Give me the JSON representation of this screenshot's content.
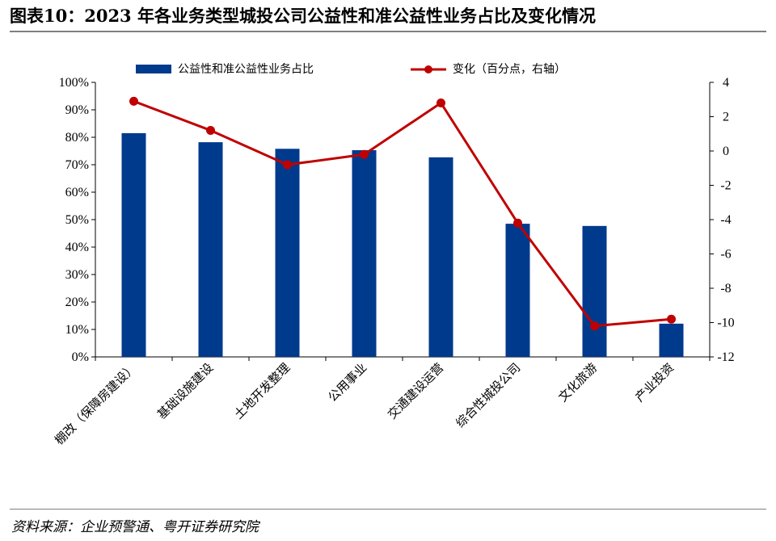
{
  "header": {
    "title": "图表10：2023 年各业务类型城投公司公益性和准公益性业务占比及变化情况"
  },
  "footer": {
    "source": "资料来源：企业预警通、粤开证券研究院"
  },
  "colors": {
    "bar": "#003A8C",
    "line": "#C00000",
    "axis": "#000000"
  },
  "chart_data": {
    "type": "bar+line",
    "categories": [
      "棚改（保障房建设）",
      "基础设施建设",
      "土地开发整理",
      "公用事业",
      "交通建设运营",
      "综合性城投公司",
      "文化旅游",
      "产业投资"
    ],
    "series": [
      {
        "name": "公益性和准公益性业务占比",
        "type": "bar",
        "axis": "left",
        "values": [
          81.5,
          78.2,
          75.8,
          75.3,
          72.7,
          48.5,
          47.7,
          12.1
        ]
      },
      {
        "name": "变化（百分点，右轴）",
        "type": "line",
        "axis": "right",
        "values": [
          2.9,
          1.2,
          -0.8,
          -0.2,
          2.8,
          -4.2,
          -10.2,
          -9.8
        ]
      }
    ],
    "y_left": {
      "min": 0,
      "max": 100,
      "step": 10,
      "ticks": [
        "0%",
        "10%",
        "20%",
        "30%",
        "40%",
        "50%",
        "60%",
        "70%",
        "80%",
        "90%",
        "100%"
      ]
    },
    "y_right": {
      "min": -12,
      "max": 4,
      "step": 2,
      "ticks": [
        "-12",
        "-10",
        "-8",
        "-6",
        "-4",
        "-2",
        "0",
        "2",
        "4"
      ]
    },
    "legend_position": "top",
    "grid": false
  }
}
